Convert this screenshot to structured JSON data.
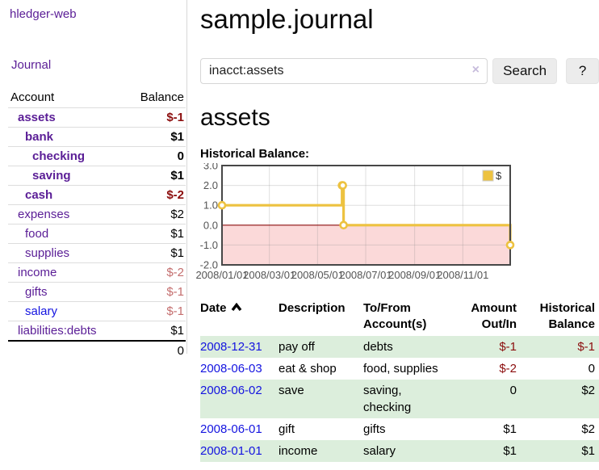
{
  "sidebar": {
    "brand": "hledger-web",
    "journal_link": "Journal",
    "accounts_table": {
      "account_header": "Account",
      "balance_header": "Balance",
      "rows": [
        {
          "name": "assets",
          "balance": "$-1",
          "level": 1,
          "bold": true,
          "balance_class": "neg-strong"
        },
        {
          "name": "bank",
          "balance": "$1",
          "level": 2,
          "bold": true,
          "balance_class": ""
        },
        {
          "name": "checking",
          "balance": "0",
          "level": 3,
          "bold": true,
          "balance_class": ""
        },
        {
          "name": "saving",
          "balance": "$1",
          "level": 3,
          "bold": true,
          "balance_class": ""
        },
        {
          "name": "cash",
          "balance": "$-2",
          "level": 2,
          "bold": true,
          "balance_class": "neg-strong"
        },
        {
          "name": "expenses",
          "balance": "$2",
          "level": 1,
          "bold": false,
          "balance_class": ""
        },
        {
          "name": "food",
          "balance": "$1",
          "level": 2,
          "bold": false,
          "balance_class": ""
        },
        {
          "name": "supplies",
          "balance": "$1",
          "level": 2,
          "bold": false,
          "balance_class": ""
        },
        {
          "name": "income",
          "balance": "$-2",
          "level": 1,
          "bold": false,
          "balance_class": "neg-soft"
        },
        {
          "name": "gifts",
          "balance": "$-1",
          "level": 2,
          "bold": false,
          "balance_class": "neg-soft"
        },
        {
          "name": "salary",
          "balance": "$-1",
          "level": 2,
          "bold": false,
          "balance_class": "neg-soft",
          "link_blue": true
        },
        {
          "name": "liabilities:debts",
          "balance": "$1",
          "level": 1,
          "bold": false,
          "balance_class": ""
        }
      ],
      "total": "0"
    }
  },
  "header": {
    "title": "sample.journal"
  },
  "search": {
    "query": "inacct:assets",
    "clear_icon": "×",
    "search_label": "Search",
    "help_label": "?"
  },
  "account_page": {
    "heading": "assets",
    "chart_title": "Historical Balance:"
  },
  "chart_data": {
    "type": "line",
    "style": "step",
    "series": [
      {
        "name": "$",
        "color": "#edc240",
        "points": [
          [
            "2008-01-01",
            1
          ],
          [
            "2008-06-01",
            2
          ],
          [
            "2008-06-02",
            2
          ],
          [
            "2008-06-03",
            0
          ],
          [
            "2008-12-31",
            -1
          ]
        ]
      }
    ],
    "xlim": [
      "2008-01-01",
      "2008-12-31"
    ],
    "ylim": [
      -2,
      3
    ],
    "x_tick_labels": [
      "2008/01/01",
      "2008/03/01",
      "2008/05/01",
      "2008/07/01",
      "2008/09/01",
      "2008/11/01"
    ],
    "y_tick_labels": [
      "3.0",
      "2.0",
      "1.0",
      "0.0",
      "-1.0",
      "-2.0"
    ],
    "grid": true,
    "legend_position": "top-right",
    "legend_label": "$",
    "negative_region_color": "#fbd9d9",
    "zero_line_color": "#8b0d0d",
    "grid_color": "#d9d9d9",
    "border_color": "#474747",
    "axis_label_color": "#545454"
  },
  "register_table": {
    "columns": [
      "Date",
      "Description",
      "To/From Account(s)",
      "Amount Out/In",
      "Historical Balance"
    ],
    "sort_column": "Date",
    "sort_direction": "ascending",
    "rows": [
      {
        "date": "2008-12-31",
        "description": "pay off",
        "accounts": "debts",
        "amount": "$-1",
        "balance": "$-1",
        "amount_neg": true,
        "balance_neg": true,
        "green": true
      },
      {
        "date": "2008-06-03",
        "description": "eat & shop",
        "accounts": "food, supplies",
        "amount": "$-2",
        "balance": "0",
        "amount_neg": true,
        "balance_neg": false,
        "green": false
      },
      {
        "date": "2008-06-02",
        "description": "save",
        "accounts": "saving, checking",
        "amount": "0",
        "balance": "$2",
        "amount_neg": false,
        "balance_neg": false,
        "green": true
      },
      {
        "date": "2008-06-01",
        "description": "gift",
        "accounts": "gifts",
        "amount": "$1",
        "balance": "$2",
        "amount_neg": false,
        "balance_neg": false,
        "green": false
      },
      {
        "date": "2008-01-01",
        "description": "income",
        "accounts": "salary",
        "amount": "$1",
        "balance": "$1",
        "amount_neg": false,
        "balance_neg": false,
        "green": true
      }
    ]
  }
}
